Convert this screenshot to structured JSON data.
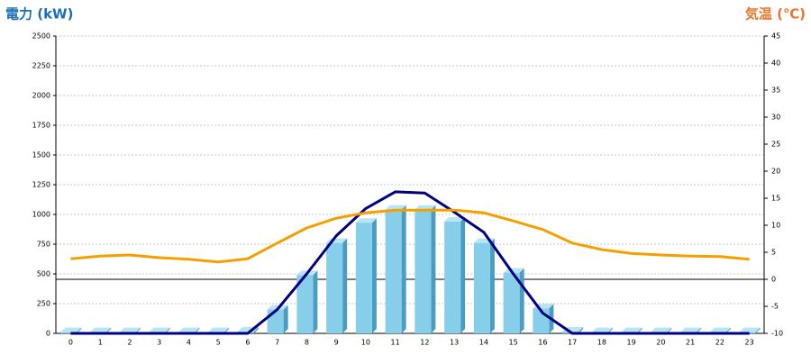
{
  "chart_data": {
    "type": "bar-line",
    "y_title": "電力 (kW)",
    "y2_title": "気温 (℃)",
    "categories": [
      "0",
      "1",
      "2",
      "3",
      "4",
      "5",
      "6",
      "7",
      "8",
      "9",
      "10",
      "11",
      "12",
      "13",
      "14",
      "15",
      "16",
      "17",
      "18",
      "19",
      "20",
      "21",
      "22",
      "23"
    ],
    "series": [
      {
        "type": "bar",
        "color": "#87ceeb",
        "values": [
          10,
          10,
          10,
          10,
          10,
          10,
          15,
          200,
          490,
          760,
          930,
          1040,
          1040,
          940,
          760,
          510,
          210,
          15,
          10,
          10,
          10,
          10,
          10,
          10
        ]
      },
      {
        "type": "line",
        "color": "#000080",
        "values": [
          0,
          0,
          0,
          0,
          0,
          0,
          0,
          200,
          500,
          820,
          1050,
          1190,
          1180,
          1020,
          850,
          500,
          170,
          0,
          0,
          0,
          0,
          0,
          0,
          0
        ]
      },
      {
        "type": "line",
        "axis": "y2",
        "color": "#f5a000",
        "values": [
          3.8,
          4.3,
          4.5,
          4,
          3.7,
          3.2,
          3.8,
          6.7,
          9.5,
          11.3,
          12.3,
          12.8,
          12.8,
          12.8,
          12.3,
          10.8,
          9.2,
          6.7,
          5.5,
          4.8,
          4.5,
          4.3,
          4.2,
          3.7
        ]
      }
    ],
    "ylim": [
      0,
      2500
    ],
    "yticks": [
      0,
      250,
      500,
      750,
      1000,
      1250,
      1500,
      1750,
      2000,
      2250,
      2500
    ],
    "y2lim": [
      -10,
      45
    ],
    "y2ticks": [
      -10,
      -5,
      0,
      5,
      10,
      15,
      20,
      25,
      30,
      35,
      40,
      45
    ],
    "grid": true
  }
}
